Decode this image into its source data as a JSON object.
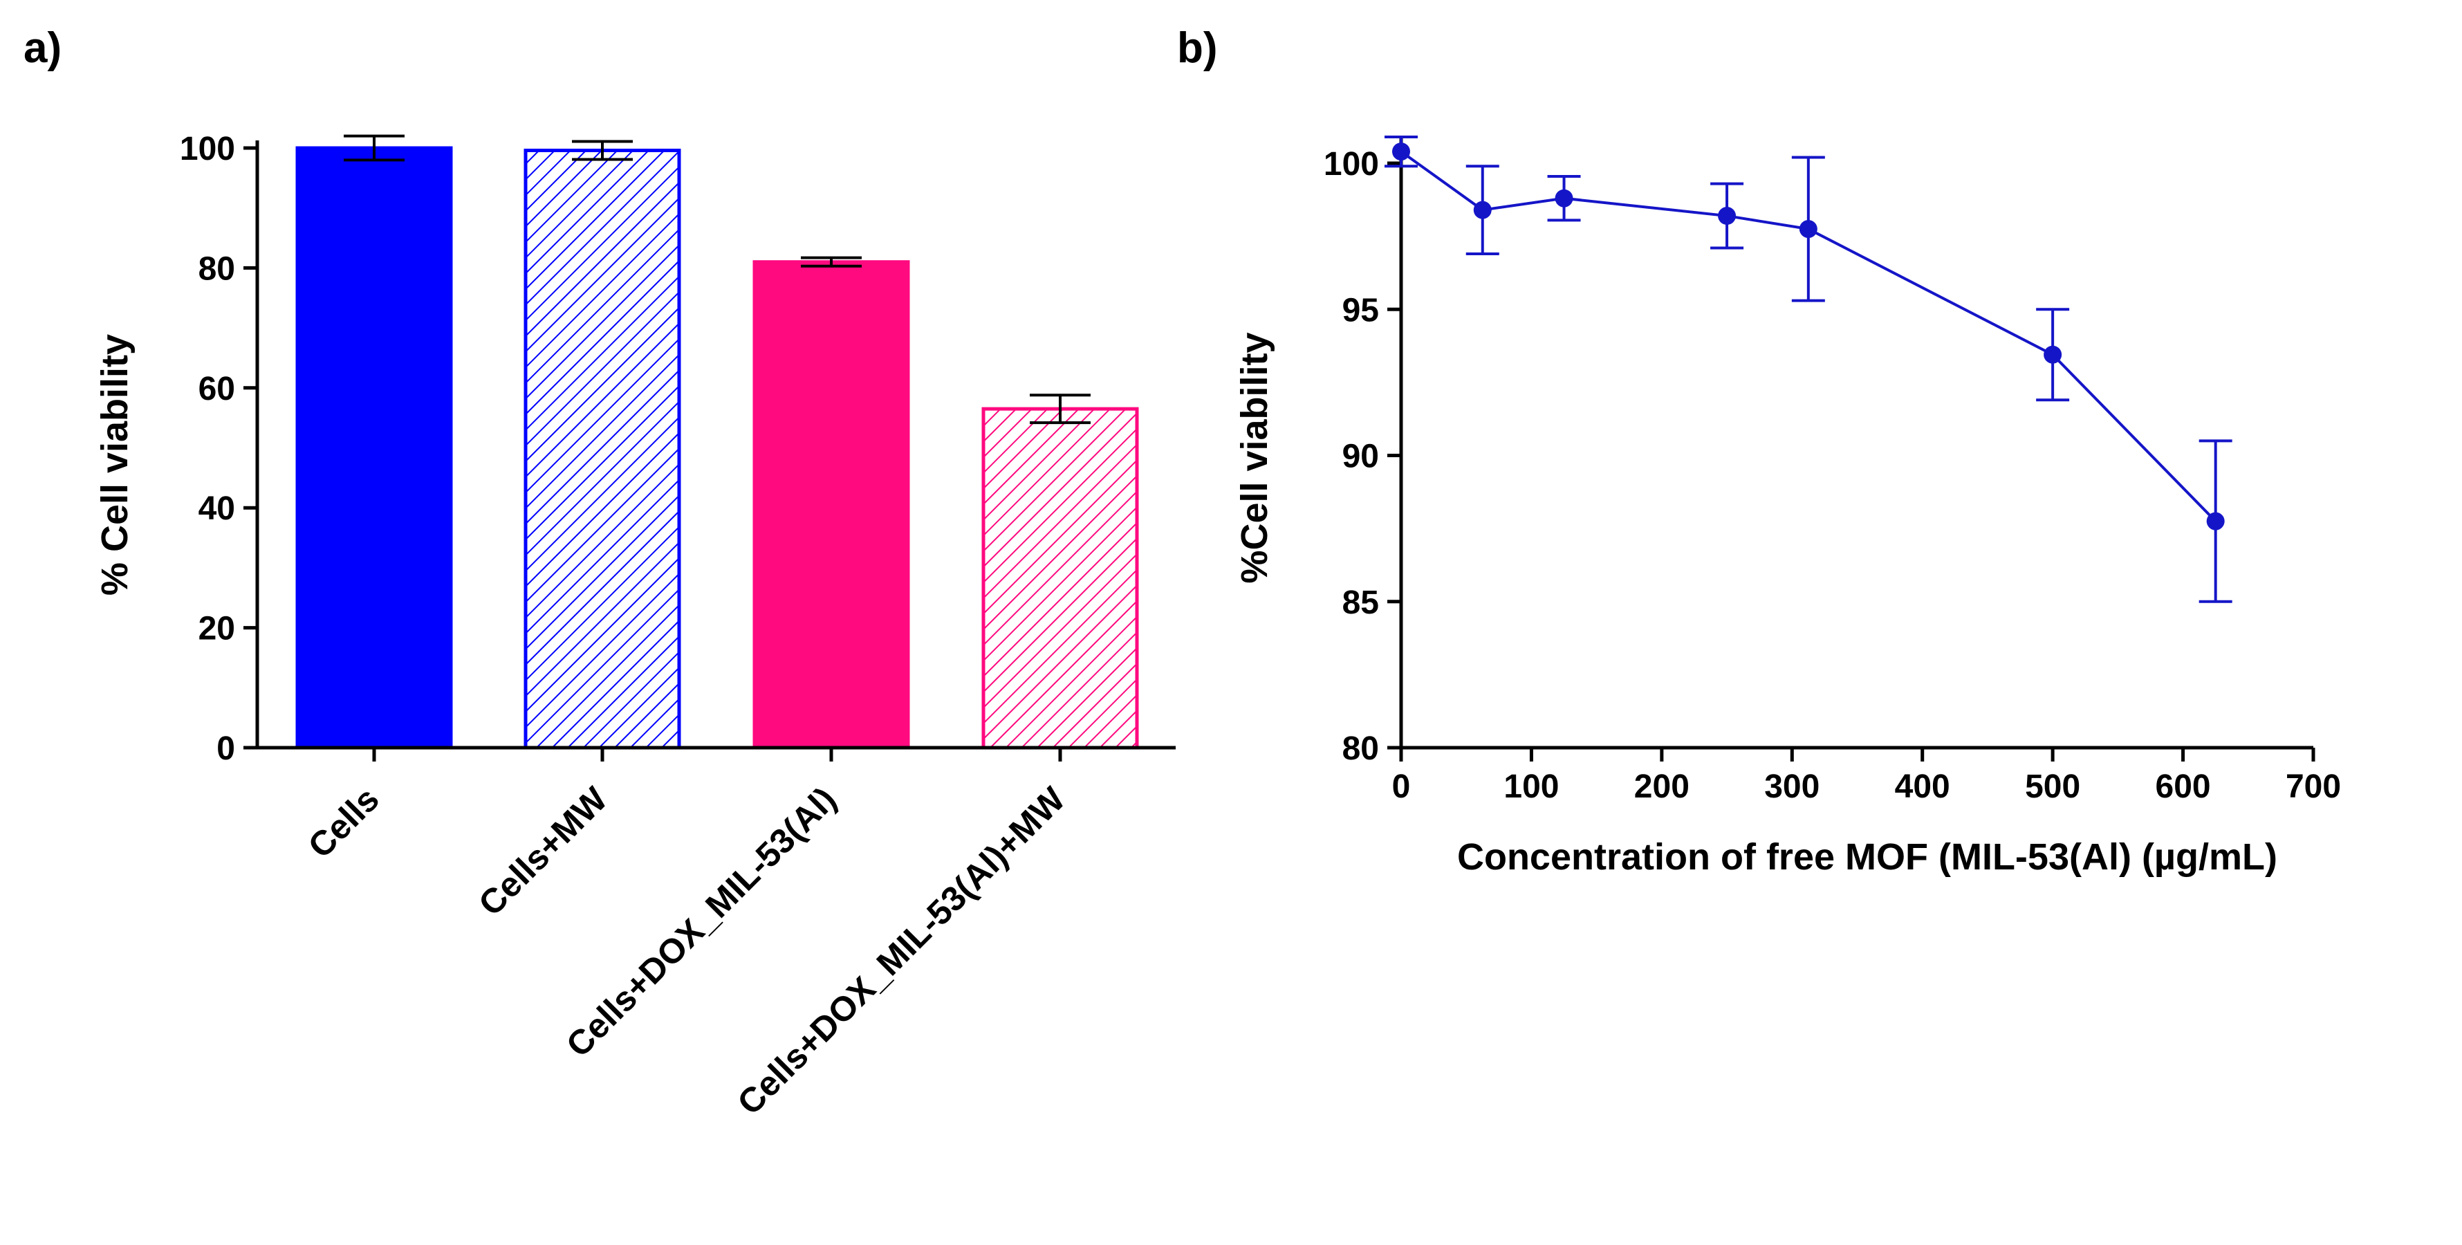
{
  "chart_data": [
    {
      "panel_label": "a)",
      "type": "bar",
      "title": "",
      "xlabel": "",
      "ylabel": "% Cell viability",
      "ylim": [
        0,
        100
      ],
      "yticks": [
        "0",
        "20",
        "40",
        "60",
        "80",
        "100"
      ],
      "categories": [
        "Cells",
        "Cells+MW",
        "Cells+DOX_MIL-53(Al)",
        "Cells+DOX_MIL-53(Al)+MW"
      ],
      "values": [
        100,
        99.6,
        81,
        56.5
      ],
      "errors": [
        2,
        1.5,
        0.7,
        2.3
      ],
      "fill_styles": [
        "solid",
        "hatched",
        "solid",
        "hatched"
      ],
      "colors": [
        "#0000ff",
        "#0000ff",
        "#ff0a7f",
        "#ff0a7f"
      ]
    },
    {
      "panel_label": "b)",
      "type": "line",
      "title": "",
      "xlabel": "Concentration of free MOF (MIL-53(Al) (µg/mL)",
      "ylabel": "%Cell viability",
      "xlim": [
        0,
        700
      ],
      "ylim": [
        80,
        100
      ],
      "xticks": [
        "0",
        "100",
        "200",
        "300",
        "400",
        "500",
        "600",
        "700"
      ],
      "yticks": [
        "80",
        "85",
        "90",
        "95",
        "100"
      ],
      "x": [
        0,
        62.5,
        125,
        250,
        312.5,
        500,
        625
      ],
      "y": [
        100.4,
        98.4,
        98.8,
        98.2,
        97.75,
        93.45,
        87.75
      ],
      "errors": [
        0.5,
        1.5,
        0.75,
        1.1,
        2.45,
        1.55,
        2.75
      ],
      "color": "#1515c8"
    }
  ]
}
